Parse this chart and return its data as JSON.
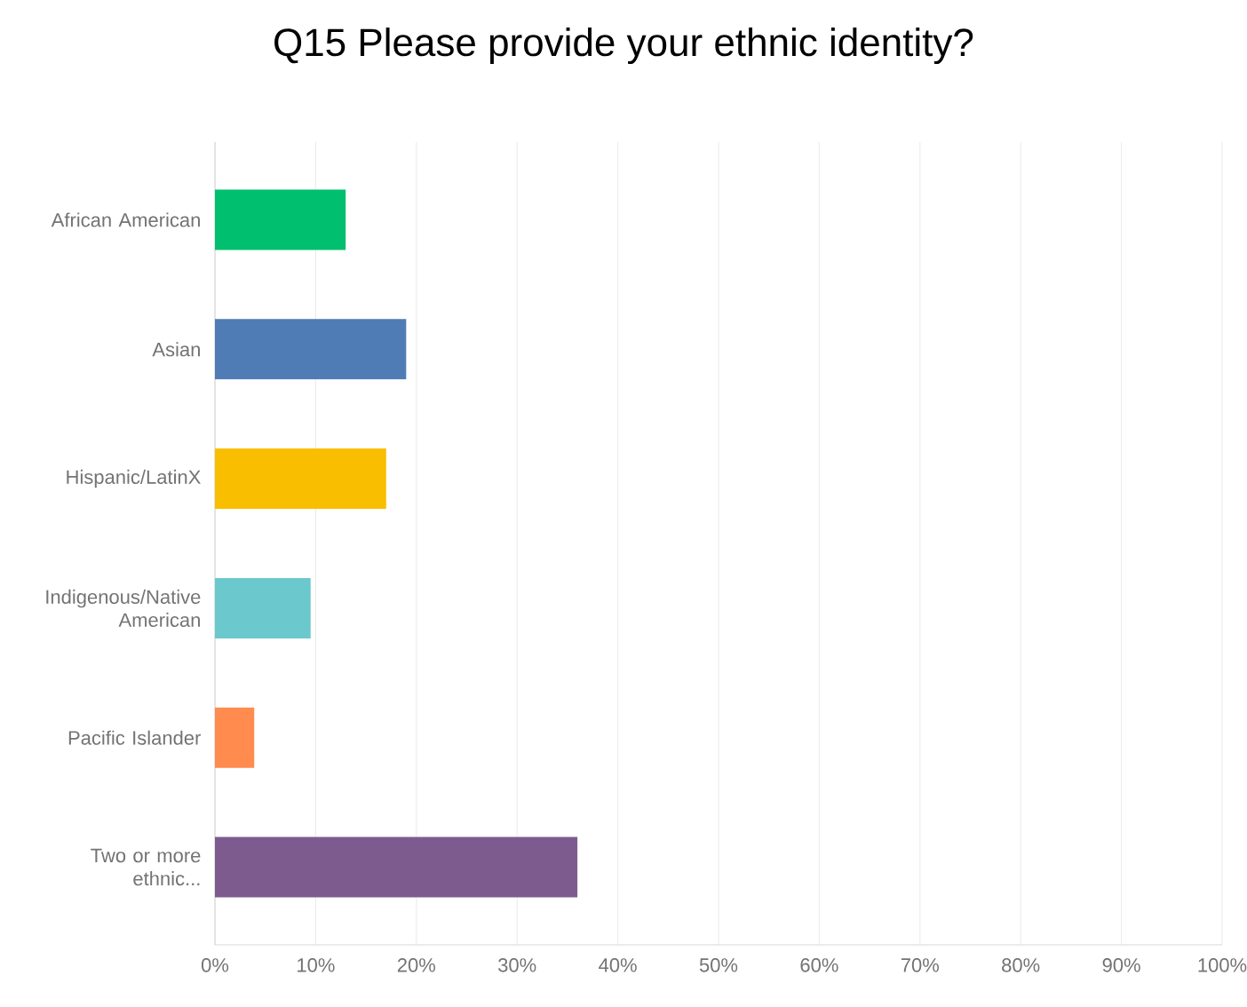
{
  "chart_data": {
    "type": "bar",
    "orientation": "horizontal",
    "title": "Q15 Please provide your ethnic identity?",
    "categories": [
      "African American",
      "Asian",
      "Hispanic/LatinX",
      "Indigenous/Native American",
      "Pacific Islander",
      "Two or more ethnic..."
    ],
    "values": [
      13,
      19,
      17,
      9.5,
      3.9,
      36
    ],
    "colors": [
      "#00bf6f",
      "#507cb6",
      "#f9be00",
      "#6bc8cd",
      "#ff8b4f",
      "#7d5b8f"
    ],
    "xlim": [
      0,
      100
    ],
    "xticks": [
      {
        "value": 0,
        "label": "0%"
      },
      {
        "value": 10,
        "label": "10%"
      },
      {
        "value": 20,
        "label": "20%"
      },
      {
        "value": 30,
        "label": "30%"
      },
      {
        "value": 40,
        "label": "40%"
      },
      {
        "value": 50,
        "label": "50%"
      },
      {
        "value": 60,
        "label": "60%"
      },
      {
        "value": 70,
        "label": "70%"
      },
      {
        "value": 80,
        "label": "80%"
      },
      {
        "value": 90,
        "label": "90%"
      },
      {
        "value": 100,
        "label": "100%"
      }
    ],
    "grid": "x"
  }
}
